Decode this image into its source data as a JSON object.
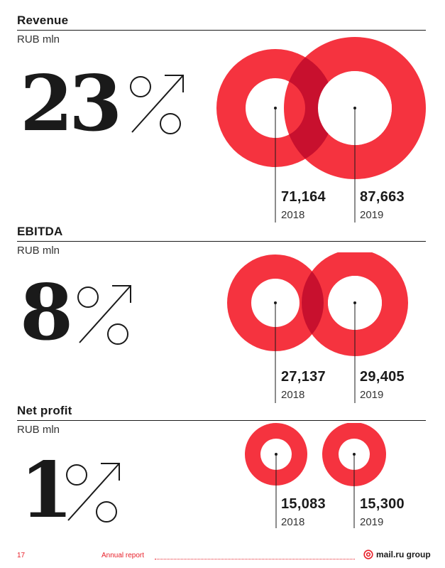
{
  "sections": [
    {
      "title": "Revenue",
      "unit": "RUB mln",
      "growth_number": "23",
      "values": [
        {
          "value": "71,164",
          "year": "2018"
        },
        {
          "value": "87,663",
          "year": "2019"
        }
      ]
    },
    {
      "title": "EBITDA",
      "unit": "RUB mln",
      "growth_number": "8",
      "values": [
        {
          "value": "27,137",
          "year": "2018"
        },
        {
          "value": "29,405",
          "year": "2019"
        }
      ]
    },
    {
      "title": "Net profit",
      "unit": "RUB mln",
      "growth_number": "1",
      "values": [
        {
          "value": "15,083",
          "year": "2018"
        },
        {
          "value": "15,300",
          "year": "2019"
        }
      ]
    }
  ],
  "colors": {
    "accent": "#f5333f",
    "overlap": "#c8102e",
    "text": "#1a1a1a"
  },
  "footer": {
    "page_number": "17",
    "report_label": "Annual report",
    "logo_text": "mail.ru group"
  },
  "icons": [
    "percent-growth-icon",
    "at-sign-icon"
  ]
}
